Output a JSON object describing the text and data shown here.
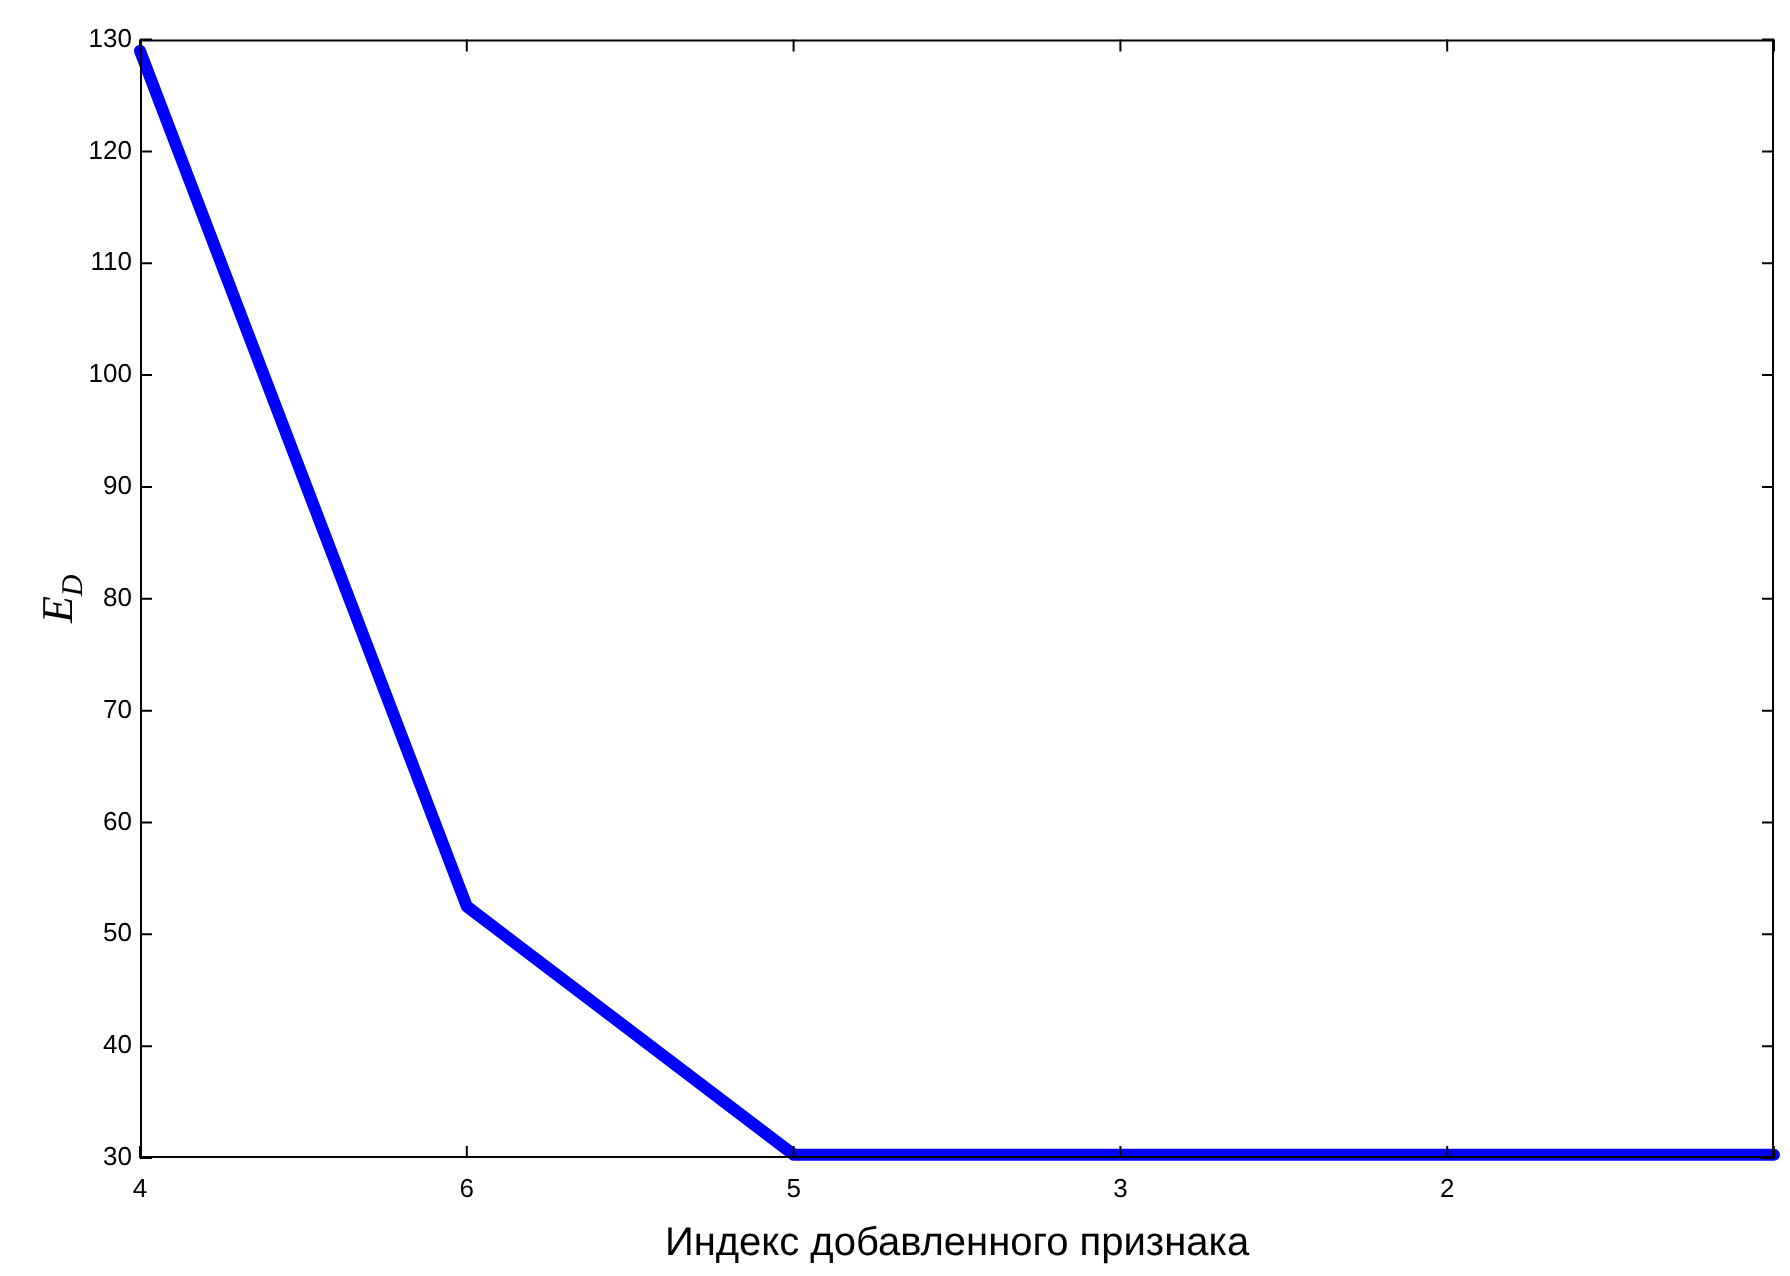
{
  "chart_data": {
    "type": "line",
    "xlabel": "Индекс добавленного признака",
    "ylabel": "E$_{D}$",
    "categories": [
      "4",
      "6",
      "5",
      "3",
      "2",
      null
    ],
    "series": [
      {
        "color": "#0000ff",
        "values": [
          129,
          52.5,
          30.3,
          30.3,
          30.3,
          30.3
        ]
      }
    ],
    "ylim": [
      30,
      130
    ],
    "yticks": [
      30,
      40,
      50,
      60,
      70,
      80,
      90,
      100,
      110,
      120,
      130
    ],
    "grid": false,
    "legend": false,
    "marker": "none",
    "line_style": "solid"
  }
}
